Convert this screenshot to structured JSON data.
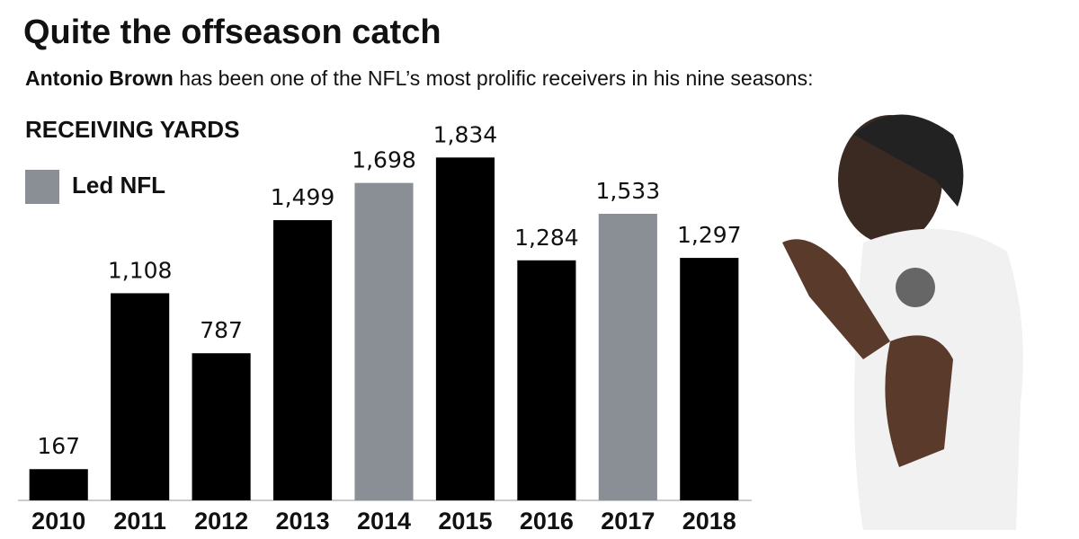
{
  "chart_data": {
    "type": "bar",
    "title": "Quite the offseason catch",
    "subtitle_lead": "Antonio Brown",
    "subtitle": "has been one of the NFL’s most prolific receivers in his nine seasons:",
    "label": "RECEIVING YARDS",
    "legend": {
      "label": "Led NFL",
      "color": "#8a8f95"
    },
    "categories": [
      "2010",
      "2011",
      "2012",
      "2013",
      "2014",
      "2015",
      "2016",
      "2017",
      "2018"
    ],
    "values": [
      167,
      1108,
      787,
      1499,
      1698,
      1834,
      1284,
      1533,
      1297
    ],
    "value_labels": [
      "167",
      "1,108",
      "787",
      "1,499",
      "1,698",
      "1,834",
      "1,284",
      "1,533",
      "1,297"
    ],
    "colors": [
      "#000000",
      "#000000",
      "#000000",
      "#000000",
      "#8a8f95",
      "#000000",
      "#000000",
      "#8a8f95",
      "#000000"
    ],
    "ylim": [
      0,
      1850
    ]
  }
}
